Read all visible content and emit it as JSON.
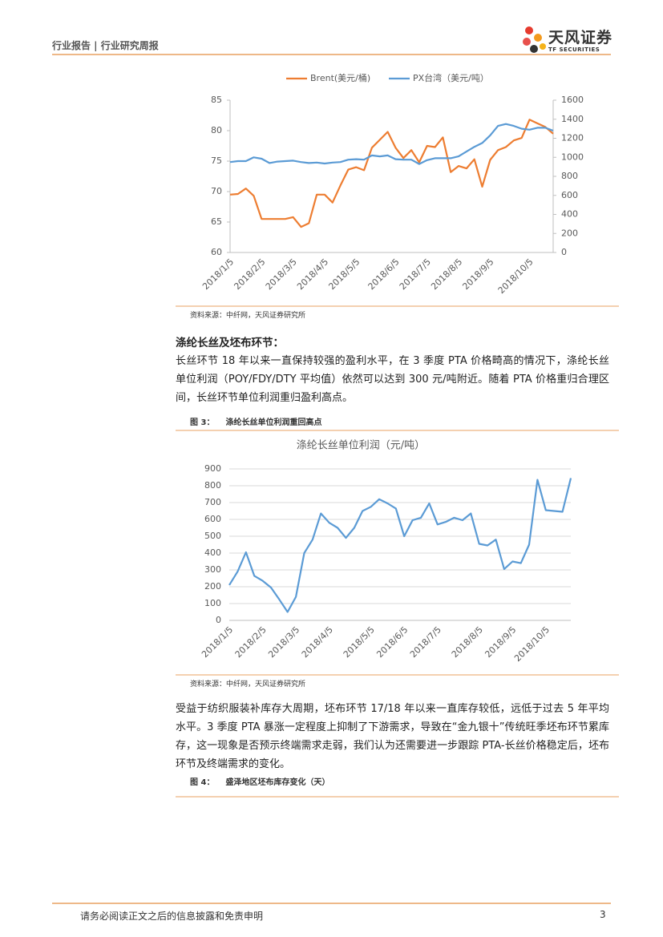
{
  "header": {
    "title": "行业报告 | 行业研究周报",
    "logo_name": "天风证券",
    "logo_subtitle": "TF SECURITIES"
  },
  "chart_data": [
    {
      "type": "line",
      "categories": [
        "2018/1/5",
        null,
        null,
        null,
        "2018/2/5",
        null,
        null,
        null,
        "2018/3/5",
        null,
        null,
        null,
        "2018/4/5",
        null,
        null,
        null,
        "2018/5/5",
        null,
        null,
        null,
        null,
        "2018/6/5",
        null,
        null,
        null,
        "2018/7/5",
        null,
        null,
        null,
        "2018/8/5",
        null,
        null,
        null,
        "2018/9/5",
        null,
        null,
        null,
        null,
        "2018/10/5",
        null,
        null,
        null
      ],
      "series": [
        {
          "name": "Brent(美元/桶)",
          "color": "#ed7d31",
          "values": [
            69.5,
            69.6,
            70.5,
            69.3,
            65.5,
            65.5,
            65.5,
            65.5,
            65.8,
            64.2,
            64.8,
            69.5,
            69.5,
            68.2,
            71,
            73.6,
            74,
            73.5,
            77.2,
            78.5,
            79.8,
            77.2,
            75.5,
            76.8,
            74.8,
            77.5,
            77.3,
            78.9,
            73.2,
            74.2,
            73.8,
            75.3,
            70.8,
            75.2,
            76.8,
            77.3,
            78.4,
            78.8,
            81.8,
            81.2,
            80.6,
            79.5
          ]
        },
        {
          "name": "PX台湾（美元/吨）",
          "color": "#5b9bd5",
          "axis": "y2",
          "values": [
            950,
            960,
            960,
            1000,
            985,
            940,
            955,
            960,
            965,
            950,
            940,
            945,
            935,
            945,
            950,
            975,
            980,
            975,
            1020,
            1010,
            1020,
            980,
            975,
            975,
            930,
            970,
            990,
            990,
            990,
            1010,
            1060,
            1110,
            1150,
            1230,
            1330,
            1350,
            1330,
            1300,
            1290,
            1310,
            1310,
            1280
          ]
        }
      ],
      "ylim": [
        60,
        85
      ],
      "yticks": [
        60,
        65,
        70,
        75,
        80,
        85
      ],
      "y2lim": [
        0,
        1600
      ],
      "y2ticks": [
        0,
        200,
        400,
        600,
        800,
        1000,
        1200,
        1400,
        1600
      ],
      "grid": false,
      "legend": "top"
    },
    {
      "type": "line",
      "title": "涤纶长丝单位利润（元/吨）",
      "categories": [
        "2018/1/5",
        null,
        null,
        null,
        "2018/2/5",
        null,
        null,
        null,
        "2018/3/5",
        null,
        null,
        null,
        "2018/4/5",
        null,
        null,
        null,
        null,
        "2018/5/5",
        null,
        null,
        null,
        "2018/6/5",
        null,
        null,
        null,
        "2018/7/5",
        null,
        null,
        null,
        null,
        "2018/8/5",
        null,
        null,
        null,
        "2018/9/5",
        null,
        null,
        null,
        "2018/10/5",
        null,
        null,
        null
      ],
      "color": "#5b9bd5",
      "values": [
        210,
        290,
        405,
        265,
        235,
        195,
        125,
        50,
        140,
        400,
        480,
        635,
        580,
        550,
        490,
        550,
        650,
        675,
        720,
        695,
        665,
        500,
        595,
        610,
        695,
        570,
        585,
        610,
        595,
        635,
        455,
        445,
        480,
        305,
        350,
        340,
        450,
        835,
        655,
        650,
        645,
        845
      ],
      "ylim": [
        0,
        900
      ],
      "yticks": [
        0,
        100,
        200,
        300,
        400,
        500,
        600,
        700,
        800,
        900
      ],
      "grid": true
    }
  ],
  "sources": [
    "资料来源：中纤网，天风证券研究所",
    "资料来源：中纤网，天风证券研究所"
  ],
  "section_heading": "涤纶长丝及坯布环节：",
  "paragraphs": [
    "长丝环节 18 年以来一直保持较强的盈利水平，在 3 季度 PTA 价格畸高的情况下，涤纶长丝单位利润（POY/FDY/DTY 平均值）依然可以达到 300 元/吨附近。随着 PTA 价格重归合理区间，长丝环节单位利润重归盈利高点。",
    "受益于纺织服装补库存大周期，坯布环节 17/18 年以来一直库存较低，远低于过去 5 年平均水平。3 季度 PTA 暴涨一定程度上抑制了下游需求，导致在“金九银十”传统旺季坯布环节累库存，这一现象是否预示终端需求走弱，我们认为还需要进一步跟踪 PTA-长丝价格稳定后，坯布环节及终端需求的变化。"
  ],
  "figures": [
    {
      "label": "图 3：",
      "caption": "涤纶长丝单位利润重回高点"
    },
    {
      "label": "图 4：",
      "caption": "盛泽地区坯布库存变化（天）"
    }
  ],
  "footer": {
    "disclaimer": "请务必阅读正文之后的信息披露和免责申明",
    "page_number": 3
  }
}
